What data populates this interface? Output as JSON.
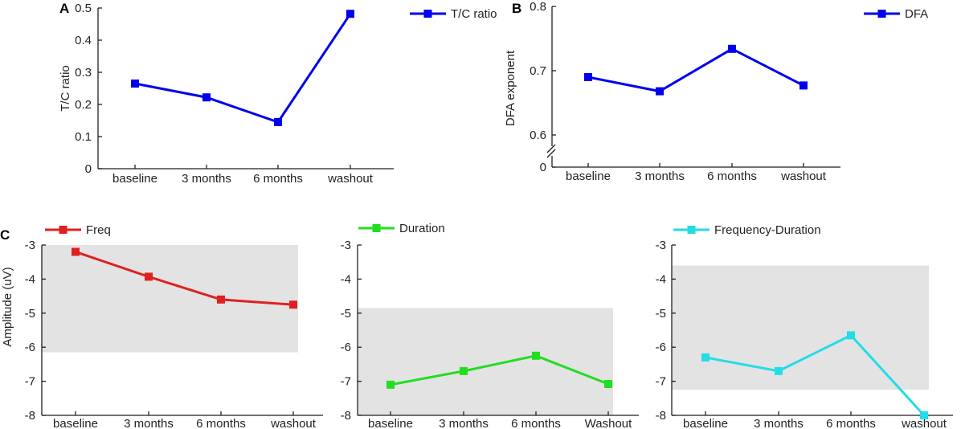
{
  "chart_data": [
    {
      "panel": "A",
      "type": "line",
      "categories": [
        "baseline",
        "3 months",
        "6 months",
        "washout"
      ],
      "series": [
        {
          "name": "T/C ratio",
          "color": "#0000ee",
          "values": [
            0.265,
            0.222,
            0.145,
            0.482
          ]
        }
      ],
      "ylabel": "T/C ratio",
      "ylim": [
        0,
        0.5
      ],
      "yticks": [
        0,
        0.1,
        0.2,
        0.3,
        0.4,
        0.5
      ],
      "ytick_labels": [
        "0",
        "0.1",
        "0.2",
        "0.3",
        "0.4",
        "0.5"
      ],
      "legend": "top-right"
    },
    {
      "panel": "B",
      "type": "line",
      "categories": [
        "baseline",
        "3 months",
        "6 months",
        "washout"
      ],
      "series": [
        {
          "name": "DFA",
          "color": "#0000ee",
          "values": [
            0.69,
            0.668,
            0.734,
            0.677
          ]
        }
      ],
      "ylabel": "DFA exponent",
      "ylim": [
        0.55,
        0.8
      ],
      "yticks": [
        0.6,
        0.7,
        0.8
      ],
      "ytick_labels": [
        "0.6",
        "0.7",
        "0.8"
      ],
      "axis_break": true,
      "break_label": "0",
      "legend": "top-right"
    },
    {
      "panel": "C",
      "type": "line",
      "categories": [
        "baseline",
        "3 months",
        "6 months",
        "washout"
      ],
      "series": [
        {
          "name": "Freq",
          "color": "#e02020",
          "values": [
            -3.2,
            -3.93,
            -4.6,
            -4.75
          ]
        }
      ],
      "ylabel": "Amplitude (uV)",
      "ylim": [
        -8,
        -3
      ],
      "yticks": [
        -3,
        -4,
        -5,
        -6,
        -7,
        -8
      ],
      "ytick_labels": [
        "-3",
        "-4",
        "-5",
        "-6",
        "-7",
        "-8"
      ],
      "band": [
        -6.15,
        -3
      ],
      "legend": "top-left"
    },
    {
      "panel": "C2",
      "type": "line",
      "categories": [
        "baseline",
        "3 months",
        "6 months",
        "Washout"
      ],
      "series": [
        {
          "name": "Duration",
          "color": "#22dd22",
          "values": [
            -7.1,
            -6.7,
            -6.25,
            -7.08
          ]
        }
      ],
      "ylabel": "",
      "ylim": [
        -8,
        -3
      ],
      "yticks": [
        -3,
        -4,
        -5,
        -6,
        -7,
        -8
      ],
      "ytick_labels": [
        "-3",
        "-4",
        "-5",
        "-6",
        "-7",
        "-8"
      ],
      "band": [
        -8,
        -4.85
      ],
      "legend": "top-left"
    },
    {
      "panel": "C3",
      "type": "line",
      "categories": [
        "baseline",
        "3 months",
        "6 months",
        "washout"
      ],
      "series": [
        {
          "name": "Frequency-Duration",
          "color": "#22dde6",
          "values": [
            -6.3,
            -6.7,
            -5.65,
            -8.0
          ]
        }
      ],
      "ylabel": "",
      "ylim": [
        -8,
        -3
      ],
      "yticks": [
        -3,
        -4,
        -5,
        -6,
        -7,
        -8
      ],
      "ytick_labels": [
        "-3",
        "-4",
        "-5",
        "-6",
        "-7",
        "-8"
      ],
      "band": [
        -7.25,
        -3.6
      ],
      "legend": "top-left"
    }
  ],
  "band_color": "#e3e3e3",
  "axis_color": "#231f20"
}
